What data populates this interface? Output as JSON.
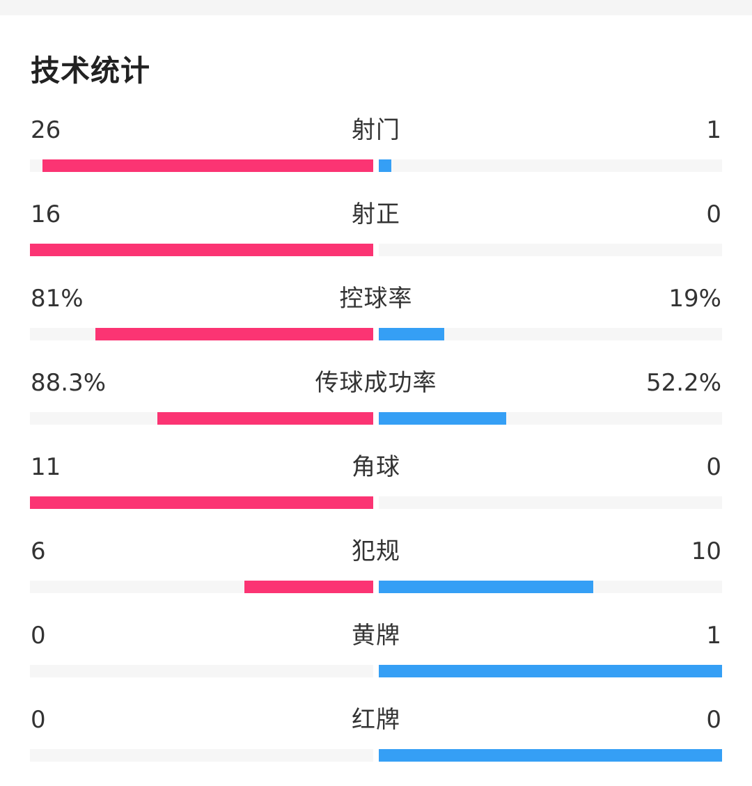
{
  "title": "技术统计",
  "colors": {
    "home": "#fb3473",
    "away": "#359ff5",
    "track": "#f6f6f6"
  },
  "stats": [
    {
      "label": "射门",
      "home": "26",
      "away": "1",
      "home_fill": 0.963,
      "away_fill": 0.037
    },
    {
      "label": "射正",
      "home": "16",
      "away": "0",
      "home_fill": 1.0,
      "away_fill": 0.0
    },
    {
      "label": "控球率",
      "home": "81%",
      "away": "19%",
      "home_fill": 0.81,
      "away_fill": 0.19
    },
    {
      "label": "传球成功率",
      "home": "88.3%",
      "away": "52.2%",
      "home_fill": 0.629,
      "away_fill": 0.371
    },
    {
      "label": "角球",
      "home": "11",
      "away": "0",
      "home_fill": 1.0,
      "away_fill": 0.0
    },
    {
      "label": "犯规",
      "home": "6",
      "away": "10",
      "home_fill": 0.375,
      "away_fill": 0.625
    },
    {
      "label": "黄牌",
      "home": "0",
      "away": "1",
      "home_fill": 0.0,
      "away_fill": 1.0
    },
    {
      "label": "红牌",
      "home": "0",
      "away": "0",
      "home_fill": 0.0,
      "away_fill": 1.0
    }
  ]
}
